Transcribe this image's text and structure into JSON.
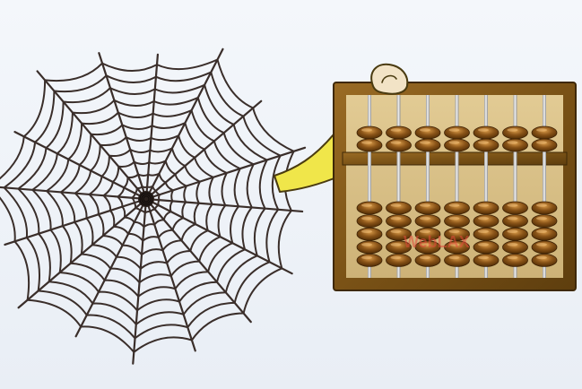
{
  "scene": {
    "background_color": "#eef2f7",
    "web_color": "#3a2e2a",
    "hand_color": "#f0e64a",
    "hand_outline": "#4a3b10",
    "finger_color": "#f2e3c6",
    "frame_dark": "#6b4a17",
    "frame_light": "#b8883a",
    "board_color": "#d9c08a",
    "bead_color": "#7a4a14",
    "bead_highlight": "#c48a3c",
    "rod_color": "#e8e8e8"
  },
  "abacus": {
    "columns": 7,
    "upper_beads_per_column": 2,
    "lower_beads_per_column": 5
  },
  "watermark": {
    "text": "WebLAX"
  }
}
